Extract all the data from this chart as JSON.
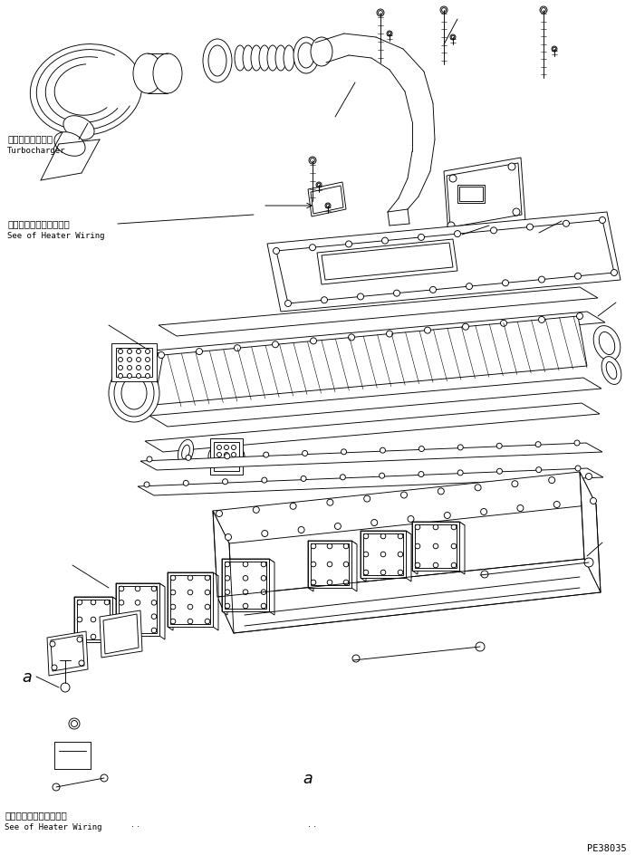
{
  "bg_color": "#ffffff",
  "line_color": "#000000",
  "fig_width": 7.01,
  "fig_height": 9.45,
  "dpi": 100,
  "label_turbocharger_jp": "ターボチャージャ",
  "label_turbocharger_en": "Turbocharger",
  "label_heater_wiring_jp": "ヒータワイヤリング参照",
  "label_heater_wiring_en": "See of Heater Wiring",
  "label_a": "a",
  "label_part_number": "PE38035",
  "font_size_jp": 7.5,
  "font_size_en": 6.5,
  "font_size_label": 11,
  "font_size_partnum": 7.5
}
